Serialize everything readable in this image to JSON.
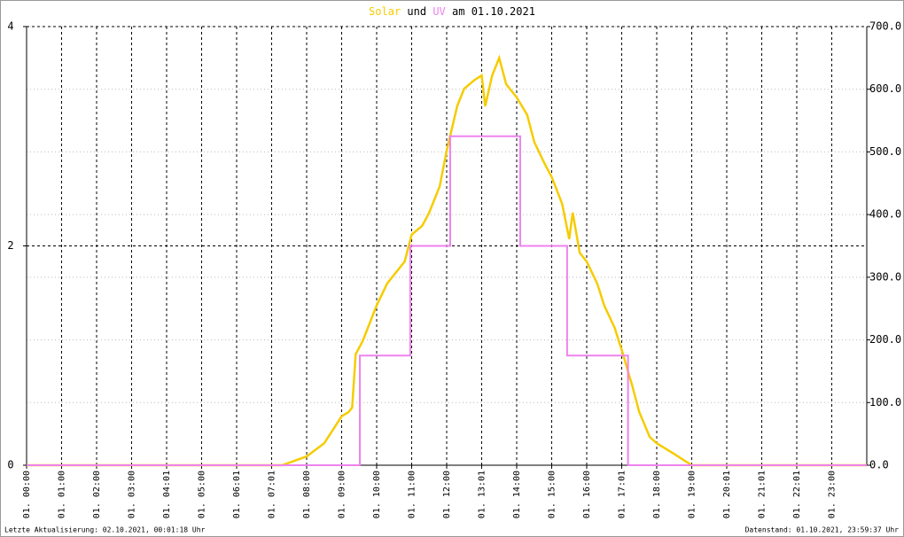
{
  "chart_data": {
    "type": "line",
    "title_connector": "und",
    "title_date": "am 01.10.2021",
    "footer_left": "Letzte Aktualisierung: 02.10.2021, 00:01:18 Uhr",
    "footer_right": "Datenstand: 01.10.2021, 23:59:37 Uhr",
    "xlim": [
      0,
      24
    ],
    "xticks": [
      {
        "value": 0,
        "label": "01. 00:00"
      },
      {
        "value": 1,
        "label": "01. 01:00"
      },
      {
        "value": 2,
        "label": "01. 02:00"
      },
      {
        "value": 3,
        "label": "01. 03:00"
      },
      {
        "value": 4,
        "label": "01. 04:01"
      },
      {
        "value": 5,
        "label": "01. 05:00"
      },
      {
        "value": 6,
        "label": "01. 06:01"
      },
      {
        "value": 7,
        "label": "01. 07:01"
      },
      {
        "value": 8,
        "label": "01. 08:00"
      },
      {
        "value": 9,
        "label": "01. 09:00"
      },
      {
        "value": 10,
        "label": "01. 10:00"
      },
      {
        "value": 11,
        "label": "01. 11:00"
      },
      {
        "value": 12,
        "label": "01. 12:00"
      },
      {
        "value": 13,
        "label": "01. 13:01"
      },
      {
        "value": 14,
        "label": "01. 14:00"
      },
      {
        "value": 15,
        "label": "01. 15:00"
      },
      {
        "value": 16,
        "label": "01. 16:00"
      },
      {
        "value": 17,
        "label": "01. 17:01"
      },
      {
        "value": 18,
        "label": "01. 18:00"
      },
      {
        "value": 19,
        "label": "01. 19:00"
      },
      {
        "value": 20,
        "label": "01. 20:01"
      },
      {
        "value": 21,
        "label": "01. 21:01"
      },
      {
        "value": 22,
        "label": "01. 22:01"
      },
      {
        "value": 23,
        "label": "01. 23:00"
      }
    ],
    "ylim": [
      0,
      4
    ],
    "yticks": [
      0,
      2,
      4
    ],
    "y2lim": [
      0,
      700
    ],
    "y2ticks": [
      {
        "value": 0,
        "label": "0.0"
      },
      {
        "value": 100,
        "label": "100.0"
      },
      {
        "value": 200,
        "label": "200.0"
      },
      {
        "value": 300,
        "label": "300.0"
      },
      {
        "value": 400,
        "label": "400.0"
      },
      {
        "value": 500,
        "label": "500.0"
      },
      {
        "value": 600,
        "label": "600.0"
      },
      {
        "value": 700,
        "label": "700.0"
      }
    ],
    "grid": true,
    "series": [
      {
        "name": "Solar",
        "color": "#f5cc00",
        "axis": "y2",
        "x": [
          0,
          7.3,
          8.0,
          8.5,
          9.0,
          9.2,
          9.3,
          9.4,
          9.6,
          10.0,
          10.3,
          10.5,
          10.8,
          11.0,
          11.3,
          11.5,
          11.8,
          12.0,
          12.3,
          12.5,
          12.8,
          13.0,
          13.1,
          13.3,
          13.5,
          13.7,
          14.0,
          14.3,
          14.5,
          14.8,
          15.0,
          15.3,
          15.5,
          15.6,
          15.8,
          16.0,
          16.3,
          16.5,
          16.8,
          17.0,
          17.3,
          17.5,
          17.8,
          18.0,
          18.5,
          19.0,
          24
        ],
        "values": [
          0,
          0,
          14,
          35,
          78,
          85,
          92,
          177,
          198,
          255,
          290,
          304,
          325,
          368,
          382,
          403,
          445,
          502,
          573,
          601,
          615,
          622,
          573,
          622,
          650,
          608,
          587,
          559,
          516,
          481,
          460,
          417,
          361,
          403,
          339,
          325,
          290,
          255,
          219,
          184,
          127,
          85,
          45,
          35,
          18,
          0,
          0
        ]
      },
      {
        "name": "UV",
        "color": "#ee82ee",
        "axis": "y",
        "x": [
          0,
          9.52,
          9.52,
          10.96,
          10.96,
          12.1,
          12.1,
          14.1,
          14.1,
          15.44,
          15.44,
          17.18,
          17.18,
          24
        ],
        "values": [
          0,
          0,
          1,
          1,
          2,
          2,
          3,
          3,
          2,
          2,
          1,
          1,
          0,
          0
        ]
      }
    ]
  }
}
